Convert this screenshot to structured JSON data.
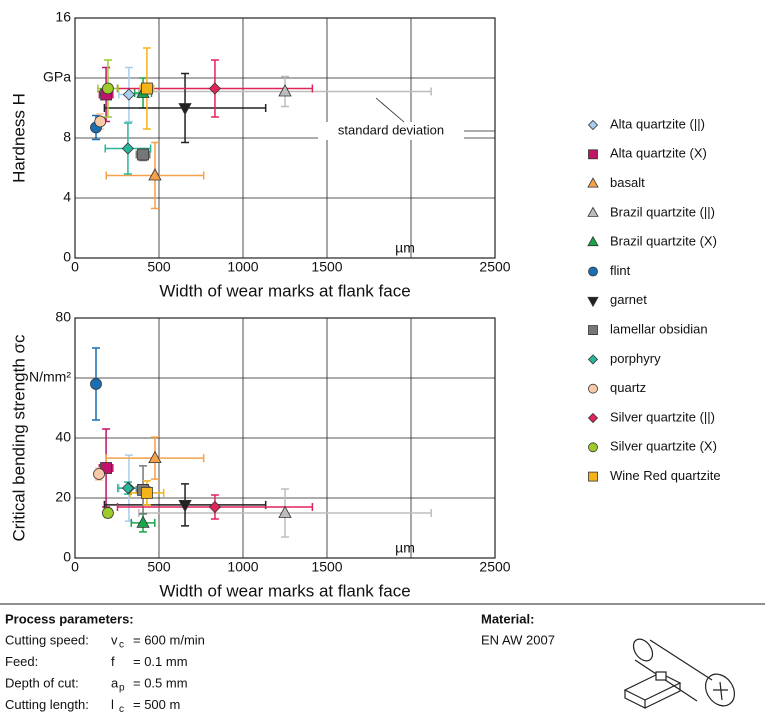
{
  "chart_data": [
    {
      "type": "scatter",
      "ylabel": "Hardness H",
      "xlabel": "Width of wear marks at flank face",
      "xlim": [
        0,
        2500
      ],
      "xticks": [
        0,
        500,
        1000,
        1500,
        {
          "value": 2000,
          "label": "µm"
        },
        2500
      ],
      "ylim": [
        0,
        16
      ],
      "yticks": [
        0,
        4,
        8,
        {
          "value": 12,
          "label": "GPa"
        },
        16
      ],
      "grid": true,
      "annotation": "standard deviation",
      "series": [
        {
          "name": "Alta quartzite (||)",
          "color": "#a9cdee",
          "marker": "diamond",
          "x": [
            321
          ],
          "values": [
            10.9
          ],
          "xerr": [
            60
          ],
          "yerr": [
            1.8
          ]
        },
        {
          "name": "Alta quartzite (X)",
          "color": "#c0136a",
          "marker": "square",
          "x": [
            185
          ],
          "values": [
            10.9
          ],
          "xerr": [
            40
          ],
          "yerr": [
            1.8
          ]
        },
        {
          "name": "basalt",
          "color": "#f5a04a",
          "marker": "triangle",
          "x": [
            476
          ],
          "values": [
            5.5
          ],
          "xerr": [
            290
          ],
          "yerr": [
            2.2
          ]
        },
        {
          "name": "Brazil quartzite (||)",
          "color": "#bdbdbd",
          "marker": "triangle",
          "x": [
            1250
          ],
          "values": [
            11.1
          ],
          "xerr": [
            870
          ],
          "yerr": [
            1.0
          ]
        },
        {
          "name": "Brazil quartzite (X)",
          "color": "#1aa54a",
          "marker": "triangle",
          "x": [
            405
          ],
          "values": [
            11.0
          ],
          "xerr": [
            50
          ],
          "yerr": [
            1.0
          ]
        },
        {
          "name": "flint",
          "color": "#1a6fb4",
          "marker": "circle",
          "x": [
            125
          ],
          "values": [
            8.7
          ],
          "xerr": [
            15
          ],
          "yerr": [
            0.8
          ]
        },
        {
          "name": "garnet",
          "color": "#222222",
          "marker": "triangle-down",
          "x": [
            655
          ],
          "values": [
            10.0
          ],
          "xerr": [
            480
          ],
          "yerr": [
            2.3
          ]
        },
        {
          "name": "lamellar obsidian",
          "color": "#777777",
          "marker": "square",
          "x": [
            405
          ],
          "values": [
            6.9
          ],
          "xerr": [
            40
          ],
          "yerr": [
            0.4
          ]
        },
        {
          "name": "porphyry",
          "color": "#2ab59a",
          "marker": "diamond",
          "x": [
            315
          ],
          "values": [
            7.3
          ],
          "xerr": [
            135
          ],
          "yerr": [
            1.7
          ]
        },
        {
          "name": "quartz",
          "color": "#f8c9a8",
          "marker": "circle",
          "x": [
            150
          ],
          "values": [
            9.1
          ],
          "xerr": [
            20
          ],
          "yerr": [
            0.5
          ]
        },
        {
          "name": "Silver quartzite (||)",
          "color": "#e0245a",
          "marker": "diamond",
          "x": [
            833
          ],
          "values": [
            11.3
          ],
          "xerr": [
            580
          ],
          "yerr": [
            1.9
          ]
        },
        {
          "name": "Silver quartzite (X)",
          "color": "#9ccb2a",
          "marker": "circle",
          "x": [
            196
          ],
          "values": [
            11.3
          ],
          "xerr": [
            60
          ],
          "yerr": [
            1.9
          ]
        },
        {
          "name": "Wine Red quartzite",
          "color": "#f5b31a",
          "marker": "square",
          "x": [
            428
          ],
          "values": [
            11.3
          ],
          "xerr": [
            40
          ],
          "yerr": [
            2.7
          ]
        }
      ]
    },
    {
      "type": "scatter",
      "ylabel": "Critical bending strength σc",
      "xlabel": "Width of wear marks at flank face",
      "xlim": [
        0,
        2500
      ],
      "xticks": [
        0,
        500,
        1000,
        1500,
        {
          "value": 2000,
          "label": "µm"
        },
        2500
      ],
      "ylim": [
        0,
        80
      ],
      "yticks": [
        0,
        20,
        40,
        {
          "value": 60,
          "label": "N/mm²"
        },
        80
      ],
      "grid": true,
      "series": [
        {
          "name": "Alta quartzite (||)",
          "color": "#a9cdee",
          "marker": "diamond",
          "x": [
            321
          ],
          "values": [
            23.3
          ],
          "xerr": [
            60
          ],
          "yerr": [
            11
          ]
        },
        {
          "name": "Alta quartzite (X)",
          "color": "#c0136a",
          "marker": "square",
          "x": [
            185
          ],
          "values": [
            30
          ],
          "xerr": [
            40
          ],
          "yerr": [
            13
          ]
        },
        {
          "name": "basalt",
          "color": "#f5a04a",
          "marker": "triangle",
          "x": [
            476
          ],
          "values": [
            33.3
          ],
          "xerr": [
            290
          ],
          "yerr": [
            7
          ]
        },
        {
          "name": "Brazil quartzite (||)",
          "color": "#bdbdbd",
          "marker": "triangle",
          "x": [
            1250
          ],
          "values": [
            15
          ],
          "xerr": [
            870
          ],
          "yerr": [
            8
          ]
        },
        {
          "name": "Brazil quartzite (X)",
          "color": "#1aa54a",
          "marker": "triangle",
          "x": [
            405
          ],
          "values": [
            11.7
          ],
          "xerr": [
            70
          ],
          "yerr": [
            3
          ]
        },
        {
          "name": "flint",
          "color": "#1a6fb4",
          "marker": "circle",
          "x": [
            125
          ],
          "values": [
            58
          ],
          "xerr": [
            15
          ],
          "yerr": [
            12
          ]
        },
        {
          "name": "garnet",
          "color": "#222222",
          "marker": "triangle-down",
          "x": [
            655
          ],
          "values": [
            17.7
          ],
          "xerr": [
            480
          ],
          "yerr": [
            7
          ]
        },
        {
          "name": "lamellar obsidian",
          "color": "#777777",
          "marker": "square",
          "x": [
            405
          ],
          "values": [
            22.7
          ],
          "xerr": [
            40
          ],
          "yerr": [
            8
          ]
        },
        {
          "name": "porphyry",
          "color": "#2ab59a",
          "marker": "diamond",
          "x": [
            315
          ],
          "values": [
            23.3
          ],
          "xerr": [
            60
          ],
          "yerr": [
            2
          ]
        },
        {
          "name": "quartz",
          "color": "#f8c9a8",
          "marker": "circle",
          "x": [
            143
          ],
          "values": [
            28
          ],
          "xerr": [
            20
          ],
          "yerr": [
            2
          ]
        },
        {
          "name": "Silver quartzite (||)",
          "color": "#e0245a",
          "marker": "diamond",
          "x": [
            833
          ],
          "values": [
            17
          ],
          "xerr": [
            580
          ],
          "yerr": [
            4
          ]
        },
        {
          "name": "Silver quartzite (X)",
          "color": "#9ccb2a",
          "marker": "circle",
          "x": [
            196
          ],
          "values": [
            15
          ],
          "xerr": [
            20
          ],
          "yerr": [
            1.5
          ]
        },
        {
          "name": "Wine Red quartzite",
          "color": "#f5b31a",
          "marker": "square",
          "x": [
            428
          ],
          "values": [
            21.7
          ],
          "xerr": [
            100
          ],
          "yerr": [
            4
          ]
        }
      ]
    }
  ],
  "process": {
    "title": "Process parameters:",
    "rows": [
      {
        "label": "Cutting speed:",
        "symbol": "v",
        "sub": "c",
        "value": "= 600 m/min"
      },
      {
        "label": "Feed:",
        "symbol": "f",
        "value": "= 0.1 mm"
      },
      {
        "label": "Depth of cut:",
        "symbol": "a",
        "sub": "p",
        "value": "= 0.5 mm"
      },
      {
        "label": "Cutting length:",
        "symbol": "l",
        "sub": "c",
        "value": "= 500 m"
      }
    ]
  },
  "material": {
    "title": "Material:",
    "value": "EN AW 2007"
  }
}
